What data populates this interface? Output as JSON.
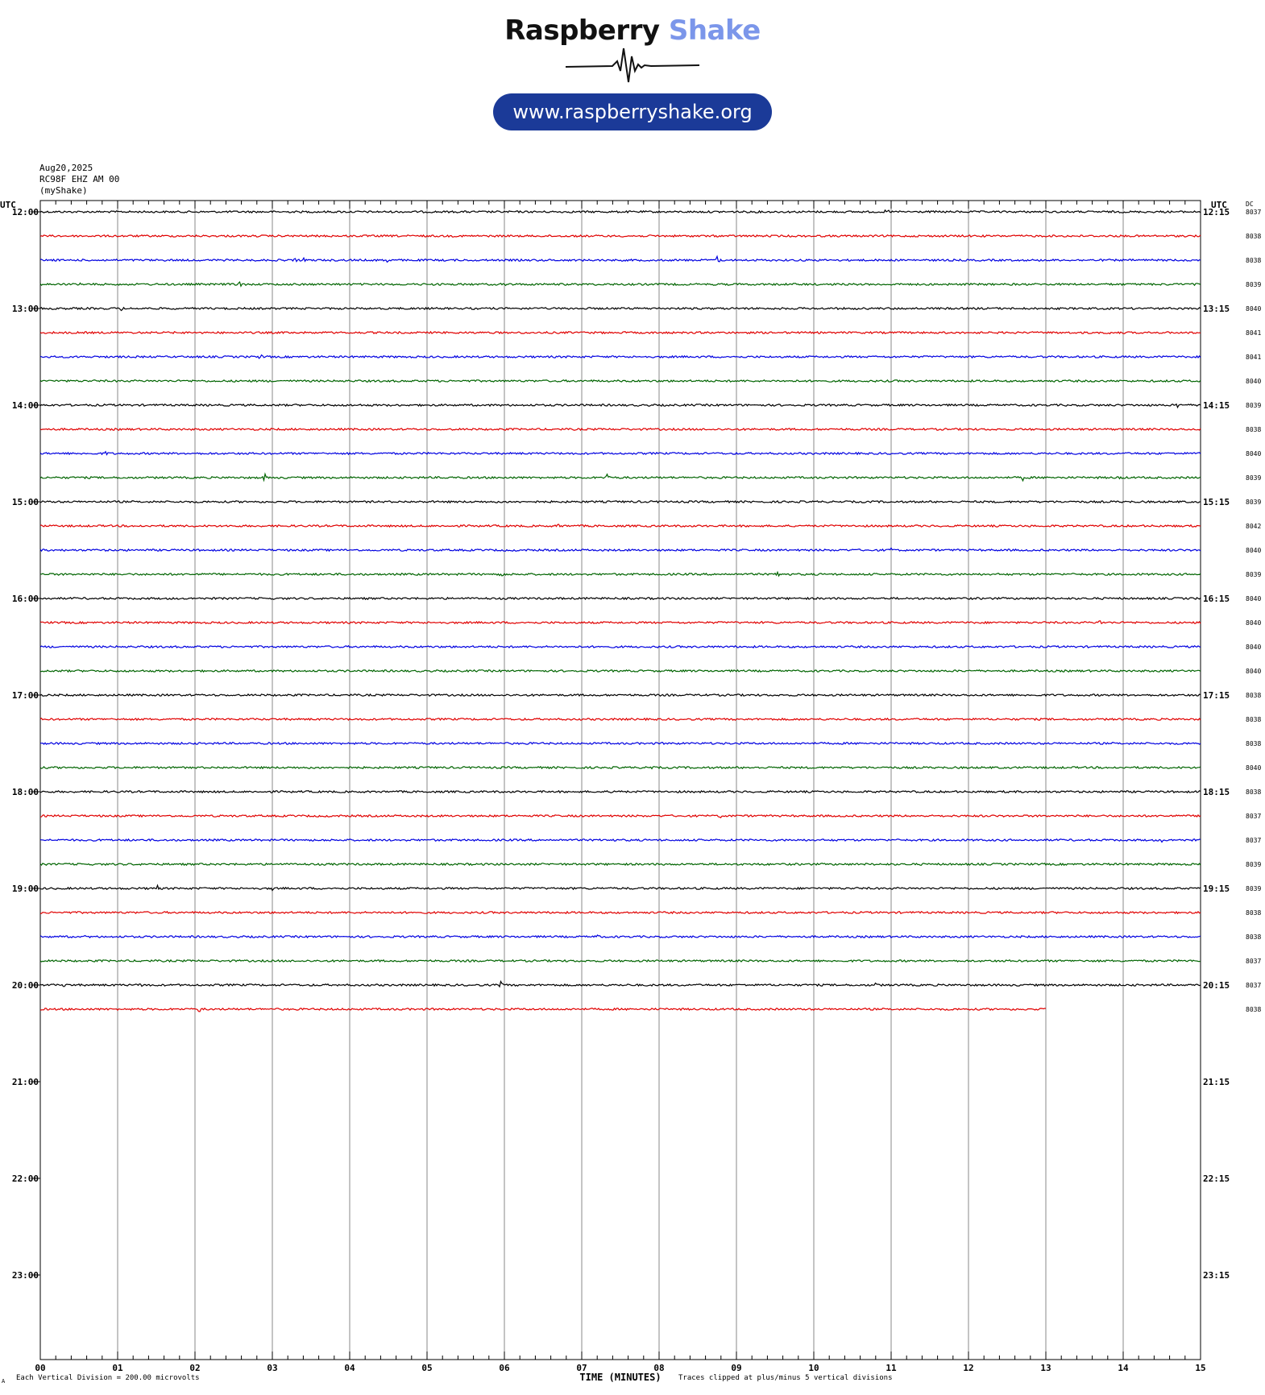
{
  "header": {
    "brand_part1": "Raspberry",
    "brand_part2": "Shake",
    "url_pill": "www.raspberryshake.org",
    "brand_colors": {
      "dark": "#111111",
      "accent": "#7b96ea",
      "pill": "#1b3a98"
    }
  },
  "meta": {
    "date": "Aug20,2025",
    "station": "RC98F EHZ AM 00",
    "owner": "(myShake)"
  },
  "chart_data": {
    "type": "line",
    "title": "",
    "xlabel": "TIME (MINUTES)",
    "left_axis_title": "UTC",
    "right_axis_title": "UTC",
    "dc_column_title": "DC",
    "xlim": [
      0,
      15
    ],
    "x_ticks": [
      "00",
      "01",
      "02",
      "03",
      "04",
      "05",
      "06",
      "07",
      "08",
      "09",
      "10",
      "11",
      "12",
      "13",
      "14",
      "15"
    ],
    "left_hour_labels": [
      "12:00",
      "13:00",
      "14:00",
      "15:00",
      "16:00",
      "17:00",
      "18:00",
      "19:00",
      "20:00",
      "21:00",
      "22:00",
      "23:00"
    ],
    "right_hour_labels": [
      "12:15",
      "13:15",
      "14:15",
      "15:15",
      "16:15",
      "17:15",
      "18:15",
      "19:15",
      "20:15",
      "21:15",
      "22:15",
      "23:15"
    ],
    "trace_colors": [
      "#000000",
      "#e00000",
      "#0000e0",
      "#006400"
    ],
    "rows": [
      {
        "dc": "8037",
        "end_min": 15,
        "events": [
          [
            10.95,
            3
          ]
        ]
      },
      {
        "dc": "8038",
        "end_min": 15,
        "events": []
      },
      {
        "dc": "8038",
        "end_min": 15,
        "events": [
          [
            3.3,
            3
          ],
          [
            3.4,
            2
          ],
          [
            4.5,
            6
          ],
          [
            8.75,
            6
          ]
        ]
      },
      {
        "dc": "8039",
        "end_min": 15,
        "events": [
          [
            0.5,
            2
          ],
          [
            2.57,
            6
          ],
          [
            6.0,
            3
          ]
        ]
      },
      {
        "dc": "8040",
        "end_min": 15,
        "events": [
          [
            1.05,
            2
          ]
        ]
      },
      {
        "dc": "8041",
        "end_min": 15,
        "events": [
          [
            13.8,
            2
          ]
        ]
      },
      {
        "dc": "8041",
        "end_min": 15,
        "events": [
          [
            2.85,
            3
          ]
        ]
      },
      {
        "dc": "8040",
        "end_min": 15,
        "events": []
      },
      {
        "dc": "8039",
        "end_min": 15,
        "events": [
          [
            14.7,
            4
          ]
        ]
      },
      {
        "dc": "8038",
        "end_min": 15,
        "events": []
      },
      {
        "dc": "8040",
        "end_min": 15,
        "events": [
          [
            0.85,
            2
          ]
        ]
      },
      {
        "dc": "8039",
        "end_min": 15,
        "events": [
          [
            2.9,
            6
          ],
          [
            5.25,
            2
          ],
          [
            7.33,
            5
          ],
          [
            12.7,
            4
          ],
          [
            13.95,
            3
          ]
        ]
      },
      {
        "dc": "8039",
        "end_min": 15,
        "events": [
          [
            12.3,
            2
          ]
        ]
      },
      {
        "dc": "8042",
        "end_min": 15,
        "events": [
          [
            6.7,
            3
          ]
        ]
      },
      {
        "dc": "8040",
        "end_min": 15,
        "events": [
          [
            11.0,
            3
          ]
        ]
      },
      {
        "dc": "8039",
        "end_min": 15,
        "events": [
          [
            5.97,
            3
          ],
          [
            7.8,
            3
          ],
          [
            9.55,
            6
          ]
        ]
      },
      {
        "dc": "8040",
        "end_min": 15,
        "events": []
      },
      {
        "dc": "8040",
        "end_min": 15,
        "events": [
          [
            9.35,
            2
          ],
          [
            13.7,
            6
          ]
        ]
      },
      {
        "dc": "8040",
        "end_min": 15,
        "events": []
      },
      {
        "dc": "8040",
        "end_min": 15,
        "events": []
      },
      {
        "dc": "8038",
        "end_min": 15,
        "events": [
          [
            8.55,
            3
          ]
        ]
      },
      {
        "dc": "8038",
        "end_min": 15,
        "events": []
      },
      {
        "dc": "8038",
        "end_min": 15,
        "events": []
      },
      {
        "dc": "8040",
        "end_min": 15,
        "events": [
          [
            1.95,
            2
          ],
          [
            7.9,
            3
          ]
        ]
      },
      {
        "dc": "8038",
        "end_min": 15,
        "events": [
          [
            7.4,
            2
          ]
        ]
      },
      {
        "dc": "8037",
        "end_min": 15,
        "events": [
          [
            8.8,
            2
          ]
        ]
      },
      {
        "dc": "8037",
        "end_min": 15,
        "events": [
          [
            7.38,
            4
          ],
          [
            14.5,
            2
          ]
        ]
      },
      {
        "dc": "8039",
        "end_min": 15,
        "events": []
      },
      {
        "dc": "8039",
        "end_min": 15,
        "events": [
          [
            1.52,
            4
          ],
          [
            3.0,
            2
          ]
        ]
      },
      {
        "dc": "8038",
        "end_min": 15,
        "events": [
          [
            4.5,
            2
          ]
        ]
      },
      {
        "dc": "8038",
        "end_min": 15,
        "events": [
          [
            0.6,
            2
          ],
          [
            7.2,
            2
          ]
        ]
      },
      {
        "dc": "8037",
        "end_min": 15,
        "events": [
          [
            13.5,
            2
          ]
        ]
      },
      {
        "dc": "8037",
        "end_min": 15,
        "events": [
          [
            0.3,
            3
          ],
          [
            1.3,
            3
          ],
          [
            5.95,
            6
          ],
          [
            10.8,
            4
          ]
        ]
      },
      {
        "dc": "8038",
        "end_min": 13,
        "events": [
          [
            2.05,
            6
          ]
        ]
      }
    ],
    "footer_left": "Each Vertical Division =  200.00 microvolts",
    "footer_right": "Traces clipped at plus/minus 5 vertical divisions",
    "corner_mark": "A",
    "grid": true
  }
}
